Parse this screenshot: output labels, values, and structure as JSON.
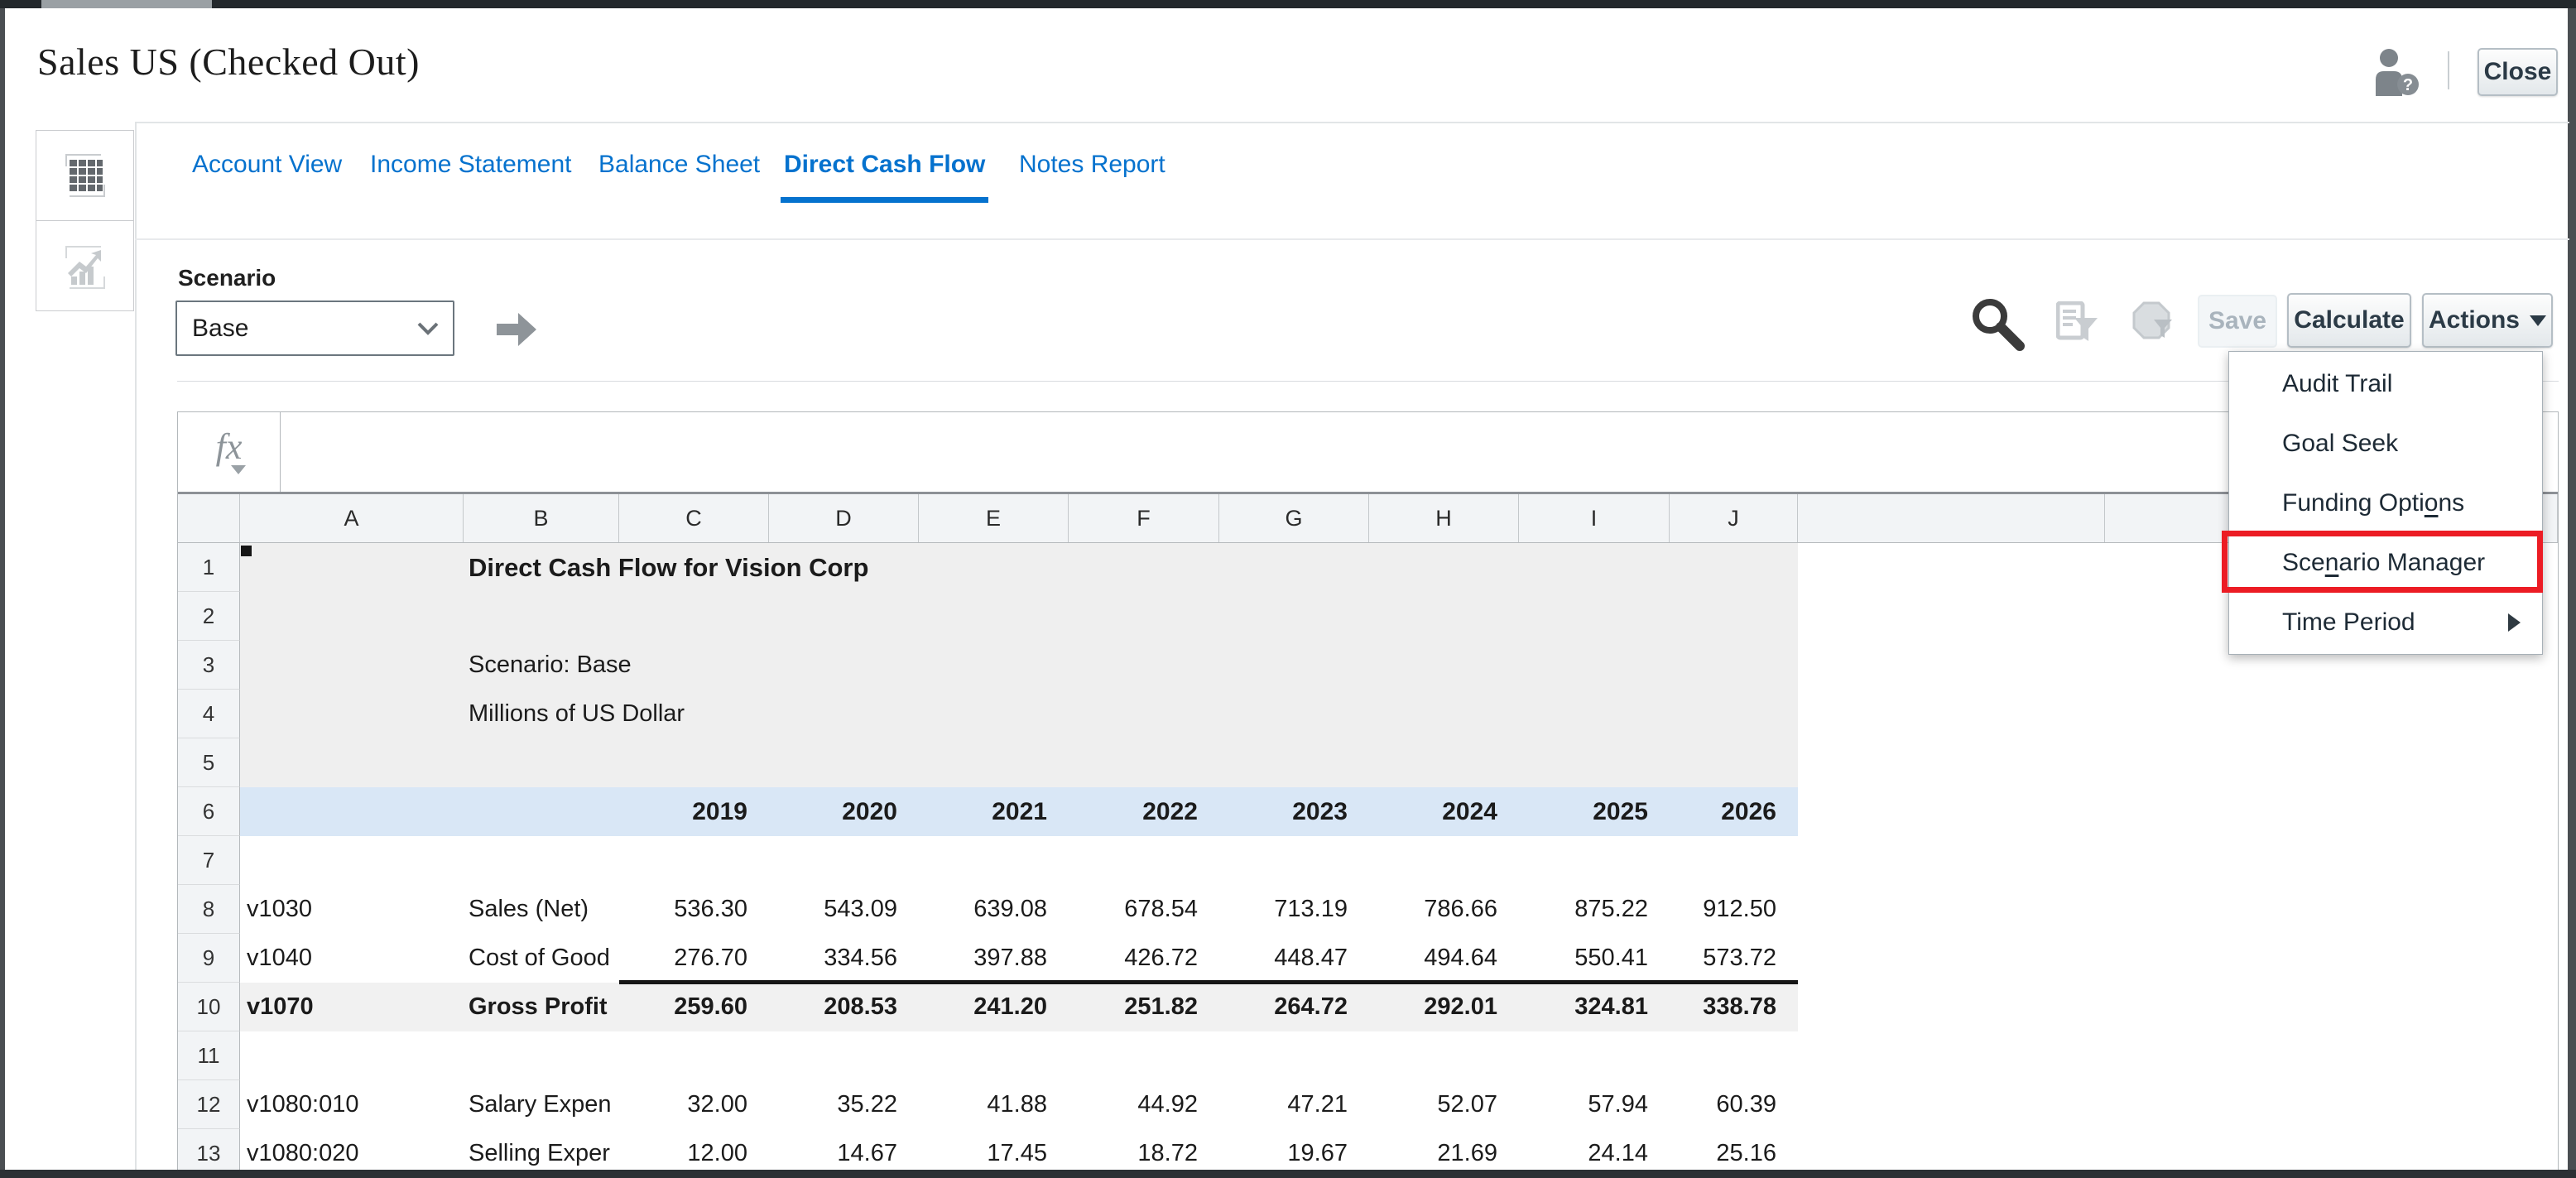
{
  "window": {
    "title": "Sales US (Checked Out)",
    "close_label": "Close"
  },
  "tabs": [
    {
      "label": "Account View",
      "active": false
    },
    {
      "label": "Income Statement",
      "active": false
    },
    {
      "label": "Balance Sheet",
      "active": false
    },
    {
      "label": "Direct Cash Flow",
      "active": true
    },
    {
      "label": "Notes Report",
      "active": false
    }
  ],
  "scenario": {
    "label": "Scenario",
    "value": "Base"
  },
  "toolbar": {
    "save_label": "Save",
    "calculate_label": "Calculate",
    "actions_label": "Actions"
  },
  "actions_menu": {
    "items": [
      {
        "pre": "Audit Trail",
        "u": "",
        "post": "",
        "submenu": false,
        "highlighted": false
      },
      {
        "pre": "Goal Seek",
        "u": "",
        "post": "",
        "submenu": false,
        "highlighted": false
      },
      {
        "pre": "Funding Opti",
        "u": "o",
        "post": "ns",
        "submenu": false,
        "highlighted": false
      },
      {
        "pre": "Sce",
        "u": "n",
        "post": "ario Manager",
        "submenu": false,
        "highlighted": true
      },
      {
        "pre": "Time Period",
        "u": "",
        "post": "",
        "submenu": true,
        "highlighted": false
      }
    ]
  },
  "formula_bar": {
    "fx_label": "fx"
  },
  "grid": {
    "column_letters": [
      "A",
      "B",
      "C",
      "D",
      "E",
      "F",
      "G",
      "H",
      "I",
      "J"
    ],
    "row_numbers": [
      "1",
      "2",
      "3",
      "4",
      "5",
      "6",
      "7",
      "8",
      "9",
      "10",
      "11",
      "12",
      "13"
    ]
  },
  "sheet": {
    "title": "Direct Cash Flow for Vision Corp",
    "scenario_note": "Scenario: Base",
    "units_note": "Millions of US Dollar",
    "years": [
      "2019",
      "2020",
      "2021",
      "2022",
      "2023",
      "2024",
      "2025",
      "2026"
    ],
    "data_rows": [
      {
        "row": 8,
        "code": "v1030",
        "label": "Sales (Net)",
        "bold": false,
        "top_border": false,
        "values": [
          "536.30",
          "543.09",
          "639.08",
          "678.54",
          "713.19",
          "786.66",
          "875.22",
          "912.50"
        ]
      },
      {
        "row": 9,
        "code": "v1040",
        "label": "Cost of Good",
        "bold": false,
        "top_border": false,
        "values": [
          "276.70",
          "334.56",
          "397.88",
          "426.72",
          "448.47",
          "494.64",
          "550.41",
          "573.72"
        ]
      },
      {
        "row": 10,
        "code": "v1070",
        "label": "Gross Profit",
        "bold": true,
        "top_border": true,
        "values": [
          "259.60",
          "208.53",
          "241.20",
          "251.82",
          "264.72",
          "292.01",
          "324.81",
          "338.78"
        ]
      },
      {
        "row": 12,
        "code": "v1080:010",
        "label": "Salary Expen",
        "bold": false,
        "top_border": false,
        "values": [
          "32.00",
          "35.22",
          "41.88",
          "44.92",
          "47.21",
          "52.07",
          "57.94",
          "60.39"
        ]
      },
      {
        "row": 13,
        "code": "v1080:020",
        "label": "Selling Exper",
        "bold": false,
        "top_border": false,
        "values": [
          "12.00",
          "14.67",
          "17.45",
          "18.72",
          "19.67",
          "21.69",
          "24.14",
          "25.16"
        ]
      }
    ]
  },
  "colors": {
    "accent_blue": "#0572ce",
    "year_band_blue": "#d9e7f6",
    "subtotal_gray": "#f1f1f1",
    "sheet_gray": "#efefef",
    "highlight_red": "#ec1c24"
  }
}
